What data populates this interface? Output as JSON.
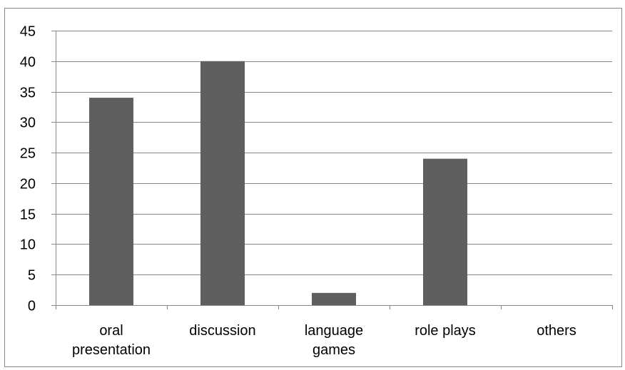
{
  "chart_data": {
    "type": "bar",
    "categories": [
      [
        "oral",
        "presentation"
      ],
      [
        "discussion"
      ],
      [
        "language",
        "games"
      ],
      [
        "role plays"
      ],
      [
        "others"
      ]
    ],
    "values": [
      34,
      40,
      2,
      24,
      0
    ],
    "ylim": [
      0,
      45
    ],
    "yticks": [
      0,
      5,
      10,
      15,
      20,
      25,
      30,
      35,
      40,
      45
    ],
    "grid": true,
    "legend": "none",
    "colors": {
      "bar": "#5f5f5f",
      "grid": "#868686",
      "axis": "#868686",
      "border": "#868686"
    }
  }
}
